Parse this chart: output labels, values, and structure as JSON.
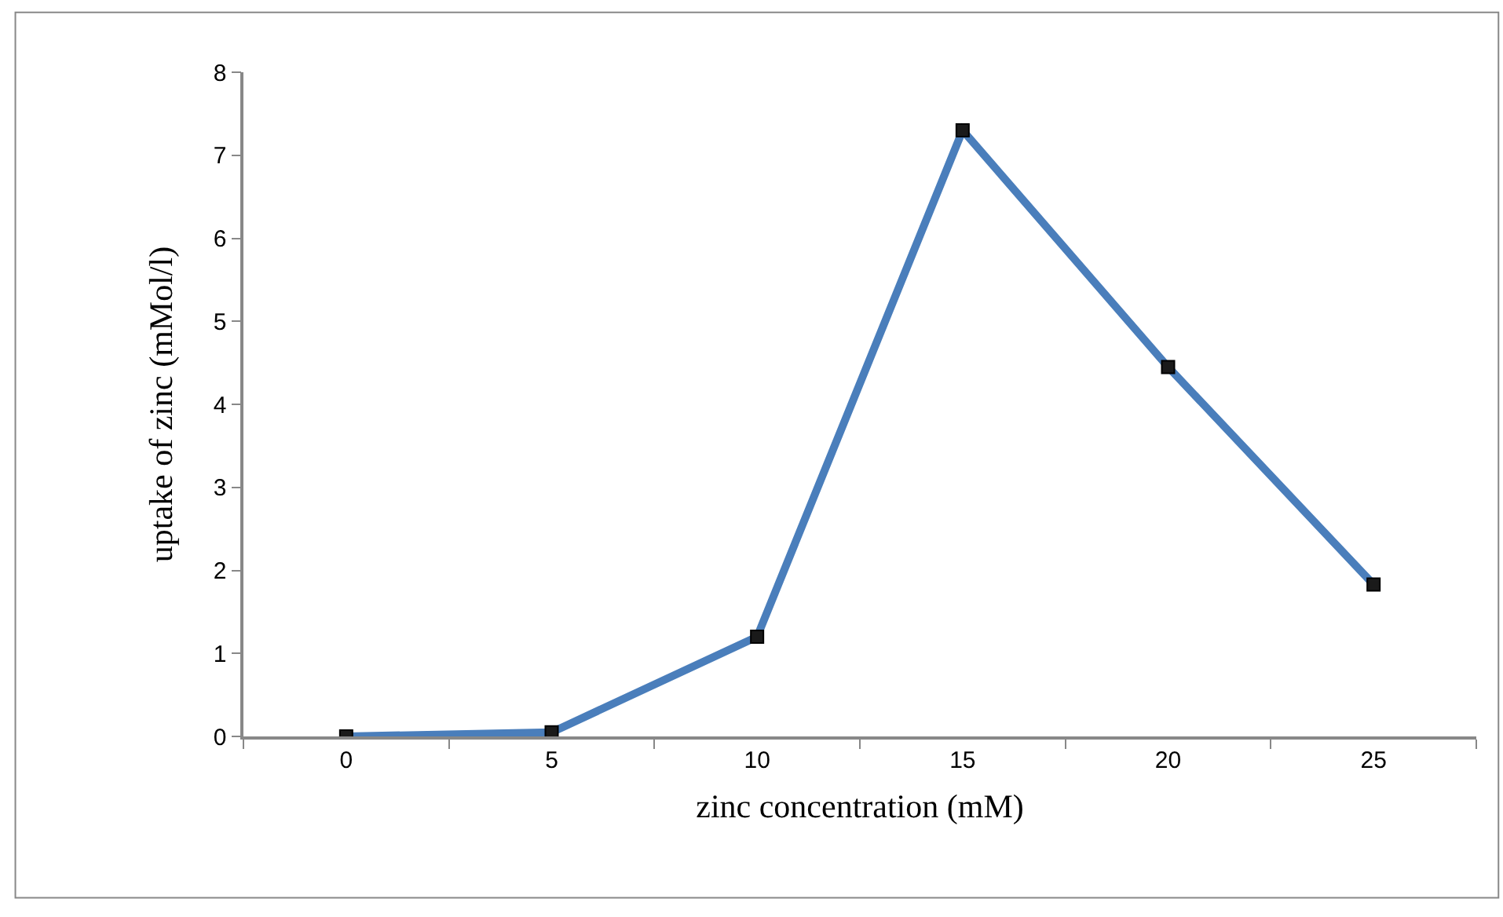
{
  "chart_data": {
    "type": "line",
    "xlabel": "zinc concentration (mM)",
    "ylabel": "uptake of zinc (mMol/l)",
    "categories": [
      "0",
      "5",
      "10",
      "15",
      "20",
      "25"
    ],
    "series": [
      {
        "color": "#4a7ebb",
        "values": [
          0,
          0.05,
          1.2,
          7.3,
          4.45,
          1.83
        ]
      }
    ],
    "ylim": [
      0,
      8
    ],
    "yticks": [
      0,
      1,
      2,
      3,
      4,
      5,
      6,
      7,
      8
    ],
    "marker": "square",
    "line_style": "solid"
  }
}
